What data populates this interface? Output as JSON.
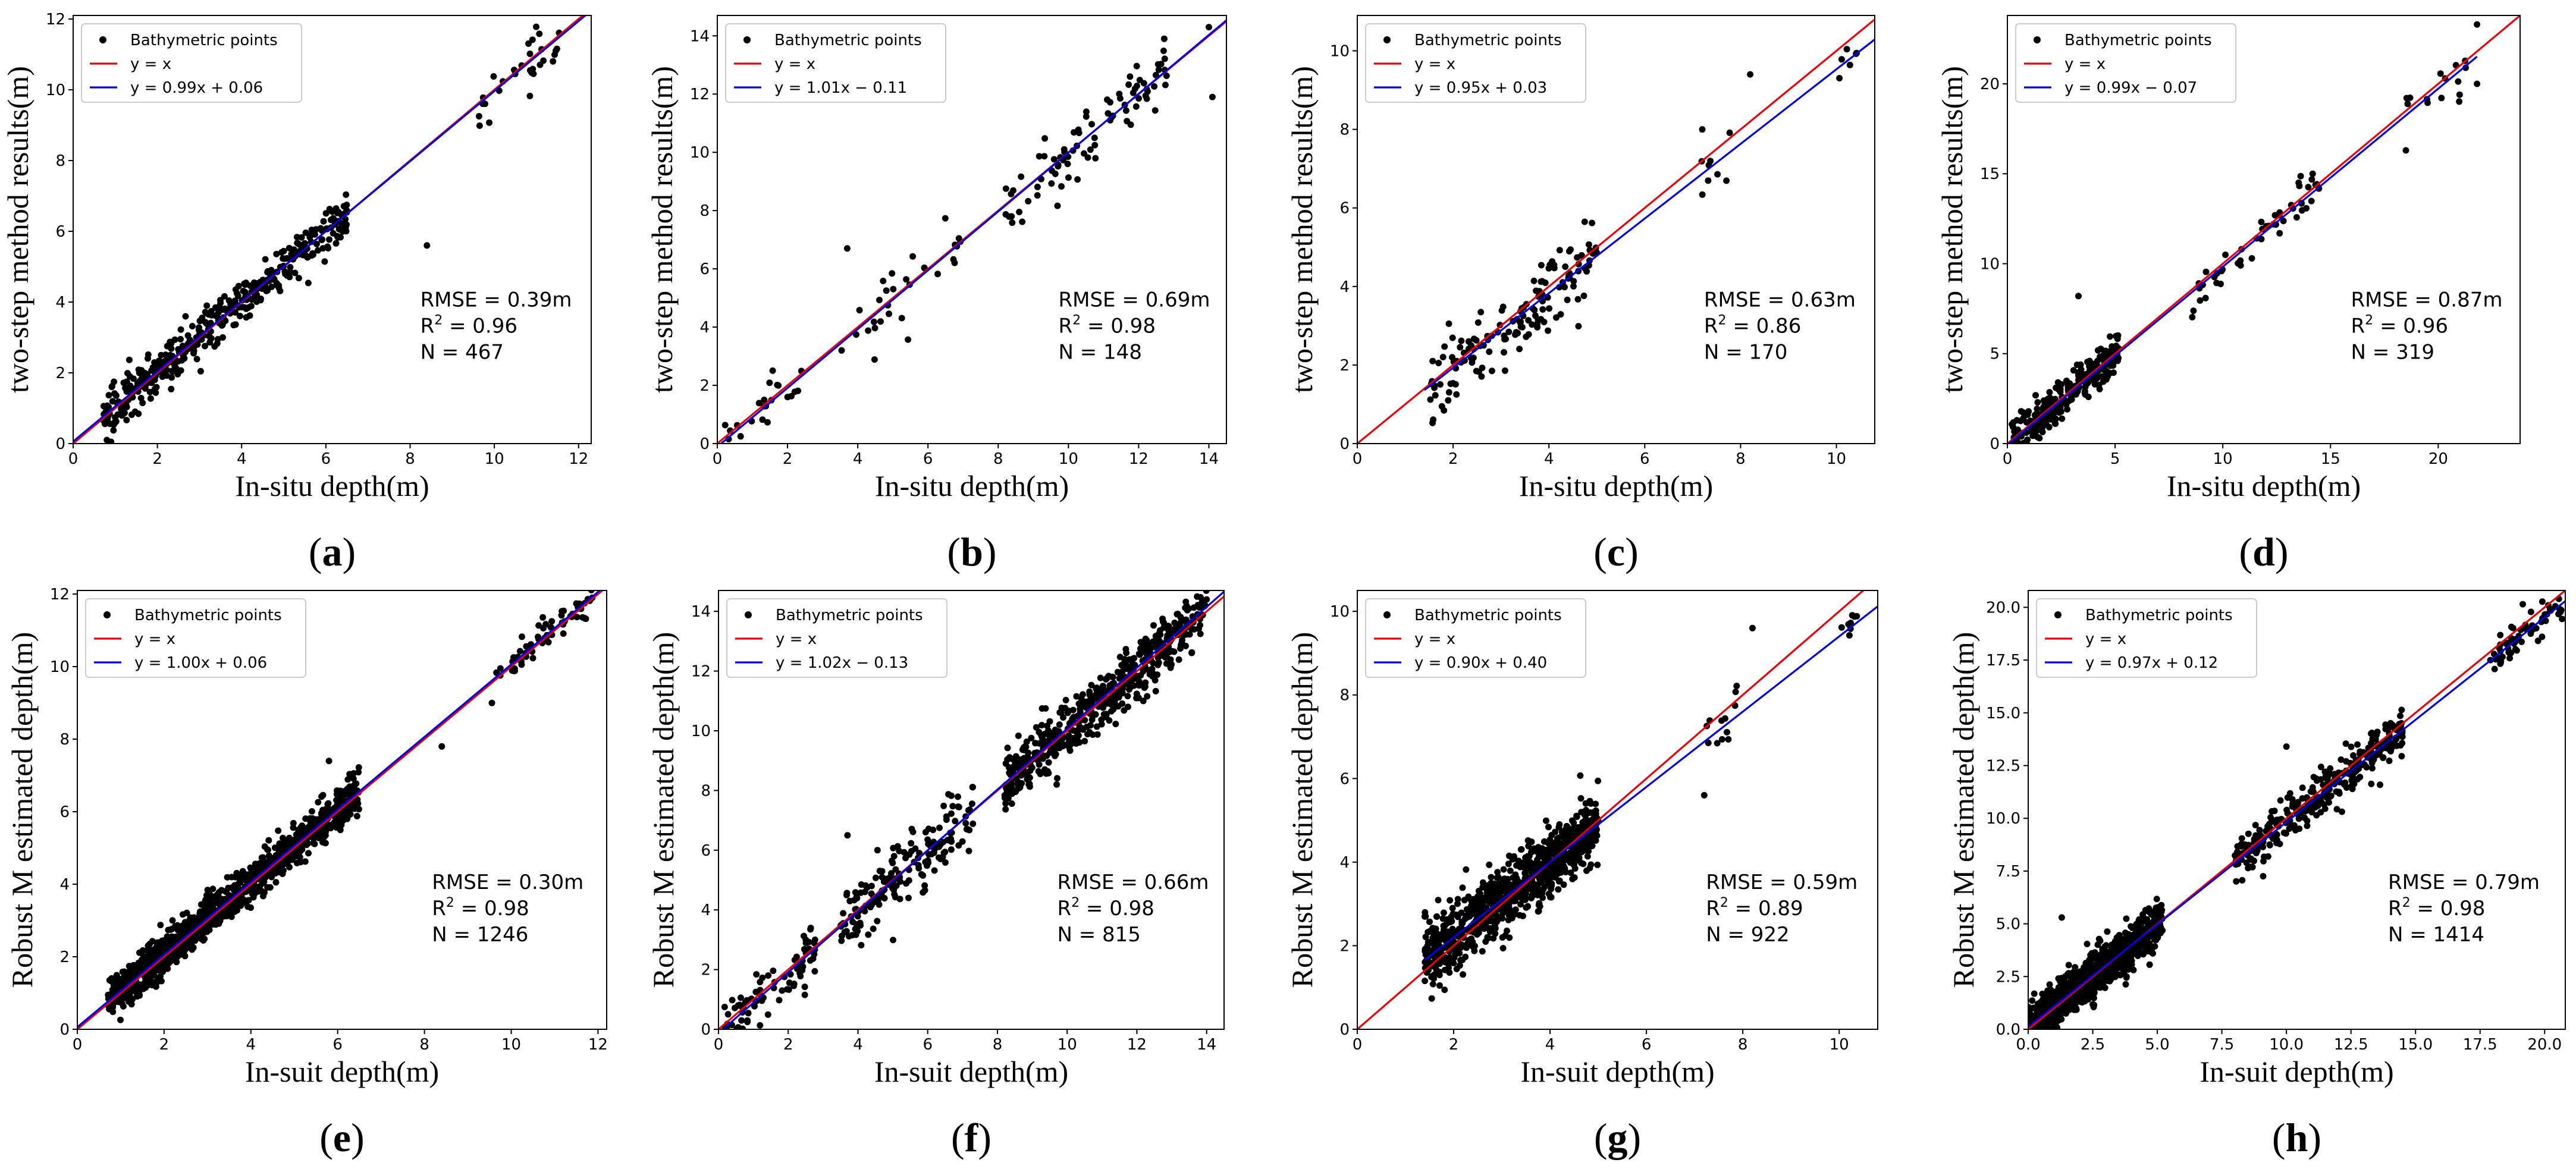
{
  "legend_labels": {
    "points": "Bathymetric points",
    "identity": "y = x"
  },
  "colors": {
    "points": "#000000",
    "identity_line": "#e8000b",
    "fit_line": "#0000e0"
  },
  "chart_data": [
    {
      "type": "scatter",
      "panel_label": "a",
      "xlabel": "In-situ depth(m)",
      "ylabel": "two-step method results(m)",
      "xlim": [
        0,
        12.3
      ],
      "ylim": [
        0,
        12.1
      ],
      "xticks": [
        0,
        2,
        4,
        6,
        8,
        10,
        12
      ],
      "yticks": [
        0,
        2,
        4,
        6,
        8,
        10,
        12
      ],
      "tick_labels_x": [
        "0",
        "2",
        "4",
        "6",
        "8",
        "10",
        "12"
      ],
      "tick_labels_y": [
        "0",
        "2",
        "4",
        "6",
        "8",
        "10",
        "12"
      ],
      "fit": {
        "slope": 0.99,
        "intercept": 0.06,
        "label": "y = 0.99x + 0.06"
      },
      "stats": {
        "rmse": "RMSE = 0.39m",
        "r2_value": "= 0.96",
        "n": "N = 467"
      },
      "legend": "top-left",
      "grid": false
    },
    {
      "type": "scatter",
      "panel_label": "b",
      "xlabel": "In-situ depth(m)",
      "ylabel": "two-step method results(m)",
      "xlim": [
        0,
        14.5
      ],
      "ylim": [
        0,
        14.7
      ],
      "xticks": [
        0,
        2,
        4,
        6,
        8,
        10,
        12,
        14
      ],
      "yticks": [
        0,
        2,
        4,
        6,
        8,
        10,
        12,
        14
      ],
      "tick_labels_x": [
        "0",
        "2",
        "4",
        "6",
        "8",
        "10",
        "12",
        "14"
      ],
      "tick_labels_y": [
        "0",
        "2",
        "4",
        "6",
        "8",
        "10",
        "12",
        "14"
      ],
      "fit": {
        "slope": 1.01,
        "intercept": -0.11,
        "label": "y = 1.01x − 0.11"
      },
      "stats": {
        "rmse": "RMSE = 0.69m",
        "r2_value": "= 0.98",
        "n": "N = 148"
      },
      "legend": "top-left",
      "grid": false
    },
    {
      "type": "scatter",
      "panel_label": "c",
      "xlabel": "In-situ depth(m)",
      "ylabel": "two-step method results(m)",
      "xlim": [
        0,
        10.8
      ],
      "ylim": [
        0,
        10.9
      ],
      "xticks": [
        0,
        2,
        4,
        6,
        8,
        10
      ],
      "yticks": [
        0,
        2,
        4,
        6,
        8,
        10
      ],
      "tick_labels_x": [
        "0",
        "2",
        "4",
        "6",
        "8",
        "10"
      ],
      "tick_labels_y": [
        "0",
        "2",
        "4",
        "6",
        "8",
        "10"
      ],
      "fit": {
        "slope": 0.95,
        "intercept": 0.03,
        "label": "y = 0.95x + 0.03"
      },
      "stats": {
        "rmse": "RMSE = 0.63m",
        "r2_value": "= 0.86",
        "n": "N = 170"
      },
      "legend": "top-left",
      "grid": false
    },
    {
      "type": "scatter",
      "panel_label": "d",
      "xlabel": "In-situ depth(m)",
      "ylabel": "two-step method results(m)",
      "xlim": [
        0,
        23.8
      ],
      "ylim": [
        0,
        23.8
      ],
      "xticks": [
        0,
        5,
        10,
        15,
        20
      ],
      "yticks": [
        0,
        5,
        10,
        15,
        20
      ],
      "tick_labels_x": [
        "0",
        "5",
        "10",
        "15",
        "20"
      ],
      "tick_labels_y": [
        "0",
        "5",
        "10",
        "15",
        "20"
      ],
      "fit": {
        "slope": 0.99,
        "intercept": -0.07,
        "label": "y = 0.99x − 0.07"
      },
      "stats": {
        "rmse": "RMSE = 0.87m",
        "r2_value": "= 0.96",
        "n": "N = 319"
      },
      "legend": "top-left",
      "grid": false
    },
    {
      "type": "scatter",
      "panel_label": "e",
      "xlabel": "In-suit depth(m)",
      "ylabel": "Robust M estimated depth(m)",
      "xlim": [
        0,
        12.2
      ],
      "ylim": [
        0,
        12.1
      ],
      "xticks": [
        0,
        2,
        4,
        6,
        8,
        10,
        12
      ],
      "yticks": [
        0,
        2,
        4,
        6,
        8,
        10,
        12
      ],
      "tick_labels_x": [
        "0",
        "2",
        "4",
        "6",
        "8",
        "10",
        "12"
      ],
      "tick_labels_y": [
        "0",
        "2",
        "4",
        "6",
        "8",
        "10",
        "12"
      ],
      "fit": {
        "slope": 1.0,
        "intercept": 0.06,
        "label": "y = 1.00x + 0.06"
      },
      "stats": {
        "rmse": "RMSE = 0.30m",
        "r2_value": "= 0.98",
        "n": "N = 1246"
      },
      "legend": "top-left",
      "grid": false
    },
    {
      "type": "scatter",
      "panel_label": "f",
      "xlabel": "In-suit depth(m)",
      "ylabel": "Robust M estimated depth(m)",
      "xlim": [
        0,
        14.5
      ],
      "ylim": [
        0,
        14.7
      ],
      "xticks": [
        0,
        2,
        4,
        6,
        8,
        10,
        12,
        14
      ],
      "yticks": [
        0,
        2,
        4,
        6,
        8,
        10,
        12,
        14
      ],
      "tick_labels_x": [
        "0",
        "2",
        "4",
        "6",
        "8",
        "10",
        "12",
        "14"
      ],
      "tick_labels_y": [
        "0",
        "2",
        "4",
        "6",
        "8",
        "10",
        "12",
        "14"
      ],
      "fit": {
        "slope": 1.02,
        "intercept": -0.13,
        "label": "y = 1.02x − 0.13"
      },
      "stats": {
        "rmse": "RMSE = 0.66m",
        "r2_value": "= 0.98",
        "n": "N = 815"
      },
      "legend": "top-left",
      "grid": false
    },
    {
      "type": "scatter",
      "panel_label": "g",
      "xlabel": "In-suit depth(m)",
      "ylabel": "Robust M estimated depth(m)",
      "xlim": [
        0,
        10.8
      ],
      "ylim": [
        0,
        10.5
      ],
      "xticks": [
        0,
        2,
        4,
        6,
        8,
        10
      ],
      "yticks": [
        0,
        2,
        4,
        6,
        8,
        10
      ],
      "tick_labels_x": [
        "0",
        "2",
        "4",
        "6",
        "8",
        "10"
      ],
      "tick_labels_y": [
        "0",
        "2",
        "4",
        "6",
        "8",
        "10"
      ],
      "fit": {
        "slope": 0.9,
        "intercept": 0.4,
        "label": "y = 0.90x + 0.40"
      },
      "stats": {
        "rmse": "RMSE = 0.59m",
        "r2_value": "= 0.89",
        "n": "N = 922"
      },
      "legend": "top-left",
      "grid": false
    },
    {
      "type": "scatter",
      "panel_label": "h",
      "xlabel": "In-suit depth(m)",
      "ylabel": "Robust M estimated depth(m)",
      "xlim": [
        0,
        20.8
      ],
      "ylim": [
        0,
        20.8
      ],
      "xticks": [
        0,
        2.5,
        5,
        7.5,
        10,
        12.5,
        15,
        17.5,
        20
      ],
      "yticks": [
        0,
        2.5,
        5,
        7.5,
        10,
        12.5,
        15,
        17.5,
        20
      ],
      "tick_labels_x": [
        "0.0",
        "2.5",
        "5.0",
        "7.5",
        "10.0",
        "12.5",
        "15.0",
        "17.5",
        "20.0"
      ],
      "tick_labels_y": [
        "0.0",
        "2.5",
        "5.0",
        "7.5",
        "10.0",
        "12.5",
        "15.0",
        "17.5",
        "20.0"
      ],
      "fit": {
        "slope": 0.97,
        "intercept": 0.12,
        "label": "y = 0.97x + 0.12"
      },
      "stats": {
        "rmse": "RMSE = 0.79m",
        "r2_value": "= 0.98",
        "n": "N = 1414"
      },
      "legend": "top-left",
      "grid": false
    }
  ]
}
